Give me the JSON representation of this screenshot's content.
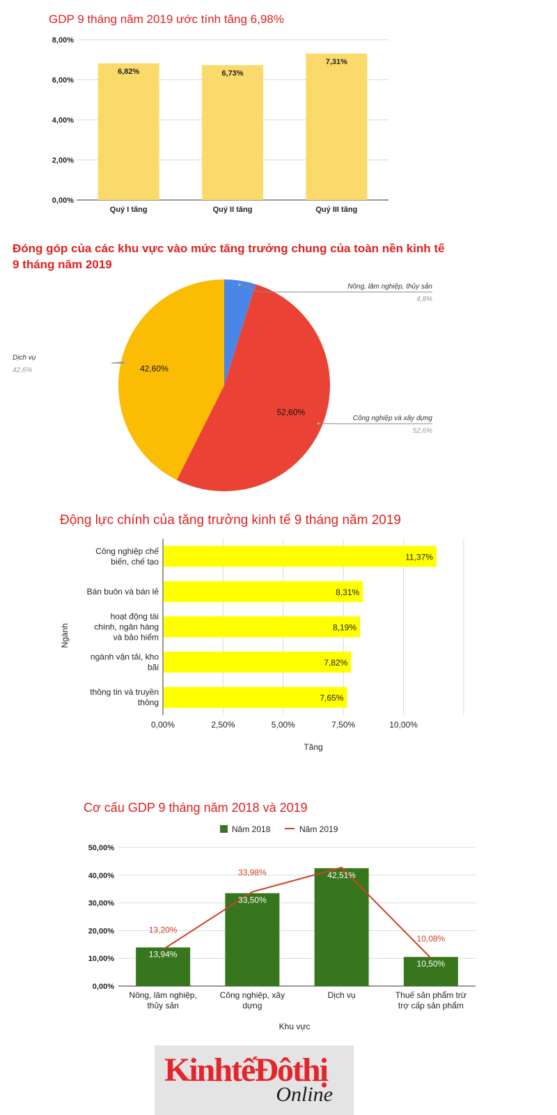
{
  "chart_data": [
    {
      "type": "bar",
      "title": "GDP 9 tháng năm 2019 ước tính tăng 6,98%",
      "categories": [
        "Quý I tăng",
        "Quý II tăng",
        "Quý III tăng"
      ],
      "values": [
        6.82,
        6.73,
        7.31
      ],
      "data_labels": [
        "6,82%",
        "6,73%",
        "7,31%"
      ],
      "yticks": [
        "0,00%",
        "2,00%",
        "4,00%",
        "6,00%",
        "8,00%"
      ],
      "ylim": [
        0,
        8
      ],
      "bar_color": "#fcd96b",
      "grid": true
    },
    {
      "type": "pie",
      "title": "Đóng góp của các khu vực vào mức tăng trưởng chung của toàn nền kinh tế 9 tháng năm 2019",
      "slices": [
        {
          "name": "Nông, lâm nghiệp, thủy sản",
          "value": 4.8,
          "legend_value": "4,8%",
          "color": "#4a86e8"
        },
        {
          "name": "Công nghiệp và xây dựng",
          "value": 52.6,
          "legend_value": "52,6%",
          "data_label": "52,60%",
          "color": "#ea4335"
        },
        {
          "name": "Dịch vụ",
          "value": 42.6,
          "legend_value": "42,6%",
          "data_label": "42,60%",
          "color": "#fbbc04"
        }
      ]
    },
    {
      "type": "bar",
      "orientation": "horizontal",
      "title": "Động lực chính của tăng trưởng kinh tế 9 tháng năm 2019",
      "categories": [
        [
          "Công nghiệp chế",
          "biến, chế tạo"
        ],
        [
          "Bán buôn và bán lẻ"
        ],
        [
          "hoạt động tài",
          "chính, ngân hàng",
          "và bảo hiểm"
        ],
        [
          "ngành vận tải, kho",
          "bãi"
        ],
        [
          "thông tin và truyền",
          "thông"
        ]
      ],
      "values": [
        11.37,
        8.31,
        8.19,
        7.82,
        7.65
      ],
      "data_labels": [
        "11,37%",
        "8,31%",
        "8,19%",
        "7,82%",
        "7,65%"
      ],
      "xticks": [
        "0,00%",
        "2,50%",
        "5,00%",
        "7,50%",
        "10,00%"
      ],
      "xlim": [
        0,
        12.5
      ],
      "xlabel": "Tăng",
      "ylabel": "Ngành",
      "bar_color": "#ffff00",
      "grid": true
    },
    {
      "type": "bar",
      "title": "Cơ cấu GDP 9 tháng năm 2018 và 2019",
      "categories": [
        [
          "Nông, lâm nghiệp,",
          "thủy sản"
        ],
        [
          "Công nghiệp, xây",
          "dựng"
        ],
        [
          "Dịch vụ"
        ],
        [
          "Thuế sản phẩm trừ",
          "trợ cấp sản phẩm"
        ]
      ],
      "series": [
        {
          "name": "Năm 2018",
          "type": "bar",
          "values": [
            13.94,
            33.5,
            42.51,
            10.5
          ],
          "data_labels": [
            "13,94%",
            "33,50%",
            "42,51%",
            "10,50%"
          ],
          "color": "#38761d"
        },
        {
          "name": "Năm 2019",
          "type": "line",
          "values": [
            13.2,
            33.98,
            42.74,
            10.08
          ],
          "data_labels": [
            "13,20%",
            "33,98%",
            "",
            "10,08%"
          ],
          "color": "#cc4125"
        }
      ],
      "yticks": [
        "0,00%",
        "10,00%",
        "20,00%",
        "30,00%",
        "40,00%",
        "50,00%"
      ],
      "ylim": [
        0,
        50
      ],
      "xlabel": "Khu vực",
      "legend_position": "top",
      "grid": true
    }
  ],
  "logo": {
    "main": "KinhtếĐôthị",
    "sub": "Online"
  }
}
